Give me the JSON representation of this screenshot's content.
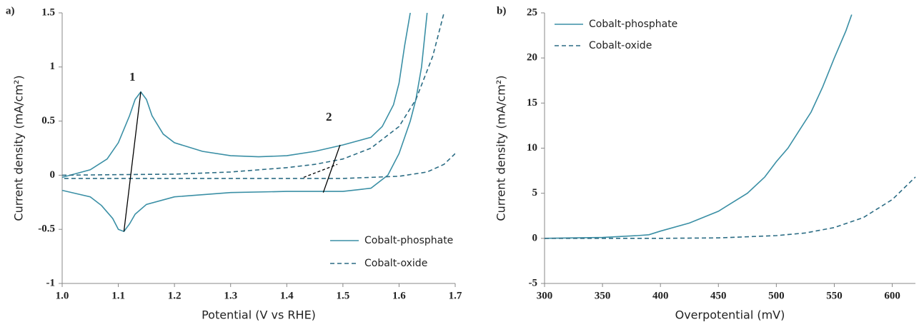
{
  "chart_data": [
    {
      "type": "line",
      "panel_label": "a)",
      "xlabel": "Potential (V vs RHE)",
      "ylabel": "Current density (mA/cm²)",
      "xlim": [
        1,
        1.7
      ],
      "xticks": [
        {
          "value": 1,
          "label": "1.0"
        },
        1.1,
        1.2,
        1.3,
        1.4,
        1.5,
        1.6,
        1.7
      ],
      "ylim": [
        -1,
        1.5
      ],
      "yticks": [
        -1,
        -0.5,
        0,
        0.5,
        1,
        1.5
      ],
      "legend": "lower right",
      "series": [
        {
          "name": "Cobalt-phosphate",
          "color": "#3a8fa5",
          "linestyle": "solid",
          "x": [
            1.0,
            1.05,
            1.08,
            1.1,
            1.12,
            1.13,
            1.14,
            1.15,
            1.16,
            1.18,
            1.2,
            1.25,
            1.3,
            1.35,
            1.4,
            1.45,
            1.5,
            1.55,
            1.57,
            1.59,
            1.6,
            1.61,
            1.62,
            null,
            1.65,
            1.645,
            1.64,
            1.63,
            1.62,
            1.6,
            1.58,
            1.55,
            1.5,
            1.4,
            1.3,
            1.2,
            1.15,
            1.13,
            1.12,
            1.11,
            1.1,
            1.09,
            1.07,
            1.05,
            1.0
          ],
          "values": [
            -0.02,
            0.05,
            0.15,
            0.3,
            0.55,
            0.7,
            0.77,
            0.7,
            0.55,
            0.38,
            0.3,
            0.22,
            0.18,
            0.17,
            0.18,
            0.22,
            0.28,
            0.35,
            0.45,
            0.65,
            0.85,
            1.2,
            1.5,
            null,
            1.5,
            1.25,
            1.0,
            0.7,
            0.5,
            0.2,
            0.0,
            -0.12,
            -0.15,
            -0.15,
            -0.16,
            -0.2,
            -0.27,
            -0.36,
            -0.45,
            -0.52,
            -0.5,
            -0.4,
            -0.28,
            -0.2,
            -0.14
          ]
        },
        {
          "name": "Cobalt-oxide",
          "color": "#2b6c84",
          "linestyle": "dashed",
          "x": [
            1.0,
            1.1,
            1.2,
            1.3,
            1.4,
            1.45,
            1.5,
            1.55,
            1.6,
            1.63,
            1.66,
            1.68,
            null,
            1.7,
            1.68,
            1.65,
            1.6,
            1.55,
            1.5,
            1.4,
            1.3,
            1.2,
            1.0
          ],
          "values": [
            0.0,
            0.005,
            0.01,
            0.03,
            0.07,
            0.1,
            0.15,
            0.25,
            0.45,
            0.7,
            1.1,
            1.5,
            null,
            0.2,
            0.1,
            0.03,
            -0.01,
            -0.02,
            -0.03,
            -0.03,
            -0.03,
            -0.03,
            -0.03
          ]
        }
      ],
      "annotations": [
        {
          "text": "1",
          "x": 1.125,
          "y": 0.9,
          "line": [
            1.14,
            0.77,
            1.11,
            -0.52
          ],
          "linestyle": "solid"
        },
        {
          "text": "2",
          "x": 1.475,
          "y": 0.53,
          "line": [
            1.465,
            -0.16,
            1.495,
            0.28
          ],
          "line2": [
            1.43,
            -0.02,
            1.49,
            0.1
          ],
          "linestyle": "solid"
        }
      ]
    },
    {
      "type": "line",
      "panel_label": "b)",
      "xlabel": "Overpotential (mV)",
      "ylabel": "Current density (mA/cm²)",
      "xlim": [
        300,
        620
      ],
      "xticks": [
        300,
        350,
        400,
        450,
        500,
        550,
        600
      ],
      "ylim": [
        -5,
        25
      ],
      "yticks": [
        -5,
        0,
        5,
        10,
        15,
        20,
        25
      ],
      "legend": "upper left",
      "series": [
        {
          "name": "Cobalt-phosphate",
          "color": "#3a8fa5",
          "linestyle": "solid",
          "x": [
            300,
            350,
            380,
            390,
            400,
            425,
            450,
            475,
            490,
            500,
            510,
            520,
            530,
            540,
            550,
            560,
            565
          ],
          "values": [
            0,
            0.1,
            0.3,
            0.4,
            0.8,
            1.7,
            3,
            5,
            6.8,
            8.5,
            10,
            12,
            14,
            16.8,
            20,
            23,
            24.8
          ]
        },
        {
          "name": "Cobalt-oxide",
          "color": "#2b6c84",
          "linestyle": "dashed",
          "x": [
            300,
            400,
            450,
            500,
            525,
            550,
            575,
            600,
            620
          ],
          "values": [
            0,
            0,
            0.05,
            0.3,
            0.6,
            1.2,
            2.3,
            4.3,
            6.8
          ]
        }
      ]
    }
  ]
}
